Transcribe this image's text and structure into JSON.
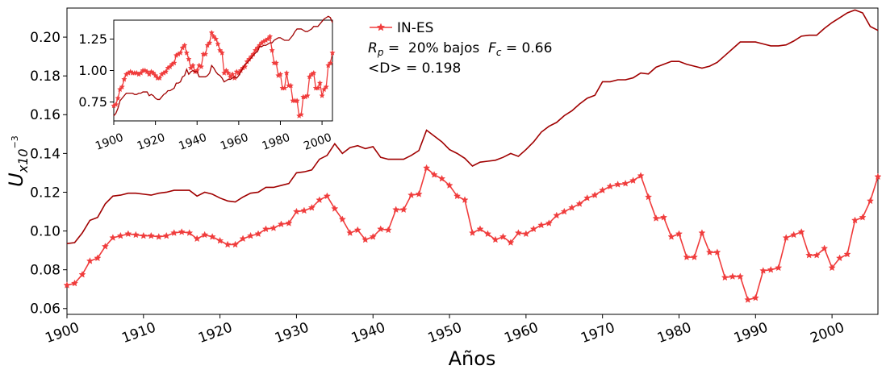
{
  "chart_data": [
    {
      "type": "line",
      "title": "",
      "xlabel": "Años",
      "ylabel": "U",
      "ylabel_sub": "x10",
      "ylabel_sup": "−3",
      "xlim": [
        1900,
        2006
      ],
      "ylim": [
        0.057,
        0.215
      ],
      "xticks": [
        1900,
        1910,
        1920,
        1930,
        1940,
        1950,
        1960,
        1970,
        1980,
        1990,
        2000
      ],
      "xtick_labels": [
        "1900",
        "1910",
        "1920",
        "1930",
        "1940",
        "1950",
        "1960",
        "1970",
        "1980",
        "1990",
        "2000"
      ],
      "yticks": [
        0.06,
        0.08,
        0.1,
        0.12,
        0.14,
        0.16,
        0.18,
        0.2
      ],
      "ytick_labels": [
        "0.06",
        "0.08",
        "0.10",
        "0.12",
        "0.14",
        "0.16",
        "0.18",
        "0.20"
      ],
      "legend": {
        "position": "top-center",
        "label": "IN-ES"
      },
      "annotations": {
        "rp_label": "R",
        "rp_sub": "p",
        "rp_text": " =  20% bajos  ",
        "fc_label": "F",
        "fc_sub": "c",
        "fc_text": " = 0.66",
        "d_text": "<D> = 0.198"
      },
      "colors": {
        "series_star": "#f03c3c",
        "series_dark": "#a00000"
      },
      "series": [
        {
          "name": "IN-ES",
          "marker": "star",
          "x": [
            1900,
            1901,
            1902,
            1903,
            1904,
            1905,
            1906,
            1907,
            1908,
            1909,
            1910,
            1911,
            1912,
            1913,
            1914,
            1915,
            1916,
            1917,
            1918,
            1919,
            1920,
            1921,
            1922,
            1923,
            1924,
            1925,
            1926,
            1927,
            1928,
            1929,
            1930,
            1931,
            1932,
            1933,
            1934,
            1935,
            1936,
            1937,
            1938,
            1939,
            1940,
            1941,
            1942,
            1943,
            1944,
            1945,
            1946,
            1947,
            1948,
            1949,
            1950,
            1951,
            1952,
            1953,
            1954,
            1955,
            1956,
            1957,
            1958,
            1959,
            1960,
            1961,
            1962,
            1963,
            1964,
            1965,
            1966,
            1967,
            1968,
            1969,
            1970,
            1971,
            1972,
            1973,
            1974,
            1975,
            1976,
            1977,
            1978,
            1979,
            1980,
            1981,
            1982,
            1983,
            1984,
            1985,
            1986,
            1987,
            1988,
            1989,
            1990,
            1991,
            1992,
            1993,
            1994,
            1995,
            1996,
            1997,
            1998,
            1999,
            2000,
            2001,
            2002,
            2003,
            2004,
            2005,
            2006
          ],
          "values": [
            0.072,
            0.073,
            0.0775,
            0.0845,
            0.086,
            0.092,
            0.0965,
            0.0975,
            0.0985,
            0.098,
            0.0975,
            0.0975,
            0.097,
            0.0975,
            0.099,
            0.0995,
            0.099,
            0.096,
            0.098,
            0.097,
            0.095,
            0.093,
            0.093,
            0.096,
            0.0975,
            0.0985,
            0.101,
            0.1015,
            0.1035,
            0.104,
            0.11,
            0.1105,
            0.112,
            0.116,
            0.118,
            0.1115,
            0.106,
            0.099,
            0.1005,
            0.0955,
            0.097,
            0.101,
            0.1005,
            0.111,
            0.111,
            0.1185,
            0.119,
            0.1325,
            0.129,
            0.127,
            0.1235,
            0.118,
            0.116,
            0.099,
            0.101,
            0.0985,
            0.0955,
            0.097,
            0.094,
            0.099,
            0.0985,
            0.101,
            0.103,
            0.104,
            0.108,
            0.11,
            0.112,
            0.114,
            0.117,
            0.1185,
            0.121,
            0.123,
            0.124,
            0.1245,
            0.126,
            0.1285,
            0.1175,
            0.1065,
            0.107,
            0.097,
            0.0985,
            0.0865,
            0.0865,
            0.099,
            0.089,
            0.089,
            0.076,
            0.0765,
            0.0765,
            0.0645,
            0.0655,
            0.0795,
            0.08,
            0.081,
            0.0965,
            0.098,
            0.0995,
            0.0875,
            0.0875,
            0.091,
            0.081,
            0.086,
            0.088,
            0.1055,
            0.107,
            0.1155,
            0.128
          ]
        },
        {
          "name": "",
          "marker": "none",
          "x": [
            1900,
            1901,
            1902,
            1903,
            1904,
            1905,
            1906,
            1907,
            1908,
            1909,
            1910,
            1911,
            1912,
            1913,
            1914,
            1915,
            1916,
            1917,
            1918,
            1919,
            1920,
            1921,
            1922,
            1923,
            1924,
            1925,
            1926,
            1927,
            1928,
            1929,
            1930,
            1931,
            1932,
            1933,
            1934,
            1935,
            1936,
            1937,
            1938,
            1939,
            1940,
            1941,
            1942,
            1943,
            1944,
            1945,
            1946,
            1947,
            1948,
            1949,
            1950,
            1951,
            1952,
            1953,
            1954,
            1955,
            1956,
            1957,
            1958,
            1959,
            1960,
            1961,
            1962,
            1963,
            1964,
            1965,
            1966,
            1967,
            1968,
            1969,
            1970,
            1971,
            1972,
            1973,
            1974,
            1975,
            1976,
            1977,
            1978,
            1979,
            1980,
            1981,
            1982,
            1983,
            1984,
            1985,
            1986,
            1987,
            1988,
            1989,
            1990,
            1991,
            1992,
            1993,
            1994,
            1995,
            1996,
            1997,
            1998,
            1999,
            2000,
            2001,
            2002,
            2003,
            2004,
            2005,
            2006
          ],
          "values": [
            0.0935,
            0.094,
            0.099,
            0.1055,
            0.107,
            0.114,
            0.118,
            0.1185,
            0.1195,
            0.1195,
            0.119,
            0.1185,
            0.1195,
            0.12,
            0.121,
            0.121,
            0.121,
            0.118,
            0.12,
            0.119,
            0.117,
            0.1155,
            0.115,
            0.1175,
            0.1195,
            0.12,
            0.1225,
            0.1225,
            0.1235,
            0.1245,
            0.13,
            0.1305,
            0.1315,
            0.137,
            0.139,
            0.145,
            0.14,
            0.143,
            0.144,
            0.1425,
            0.1435,
            0.138,
            0.137,
            0.137,
            0.137,
            0.139,
            0.1415,
            0.152,
            0.149,
            0.146,
            0.142,
            0.14,
            0.1375,
            0.1335,
            0.1355,
            0.136,
            0.1365,
            0.138,
            0.14,
            0.1385,
            0.142,
            0.146,
            0.151,
            0.154,
            0.156,
            0.1595,
            0.162,
            0.1655,
            0.1685,
            0.17,
            0.177,
            0.177,
            0.178,
            0.178,
            0.179,
            0.1815,
            0.181,
            0.1845,
            0.186,
            0.1875,
            0.1875,
            0.186,
            0.185,
            0.184,
            0.185,
            0.187,
            0.1905,
            0.194,
            0.1975,
            0.1975,
            0.1975,
            0.1965,
            0.1955,
            0.1955,
            0.196,
            0.198,
            0.2005,
            0.201,
            0.201,
            0.2045,
            0.2075,
            0.21,
            0.2125,
            0.214,
            0.2125,
            0.2055,
            0.2035
          ]
        }
      ]
    },
    {
      "type": "line",
      "title": "",
      "xlabel": "",
      "ylabel": "",
      "xlim": [
        1900,
        2005
      ],
      "ylim": [
        0.6,
        1.4
      ],
      "xticks": [
        1900,
        1920,
        1940,
        1960,
        1980,
        2000
      ],
      "xtick_labels": [
        "1900",
        "1920",
        "1940",
        "1960",
        "1980",
        "2000"
      ],
      "yticks": [
        0.75,
        1.0,
        1.25
      ],
      "ytick_labels": [
        "0.75",
        "1.00",
        "1.25"
      ],
      "series": [
        {
          "name": "IN-ES",
          "marker": "star",
          "x": [
            1900,
            1901,
            1902,
            1903,
            1904,
            1905,
            1906,
            1907,
            1908,
            1909,
            1910,
            1911,
            1912,
            1913,
            1914,
            1915,
            1916,
            1917,
            1918,
            1919,
            1920,
            1921,
            1922,
            1923,
            1924,
            1925,
            1926,
            1927,
            1928,
            1929,
            1930,
            1931,
            1932,
            1933,
            1934,
            1935,
            1936,
            1937,
            1938,
            1939,
            1940,
            1941,
            1942,
            1943,
            1944,
            1945,
            1946,
            1947,
            1948,
            1949,
            1950,
            1951,
            1952,
            1953,
            1954,
            1955,
            1956,
            1957,
            1958,
            1959,
            1960,
            1961,
            1962,
            1963,
            1964,
            1965,
            1966,
            1967,
            1968,
            1969,
            1970,
            1971,
            1972,
            1973,
            1974,
            1975,
            1976,
            1977,
            1978,
            1979,
            1980,
            1981,
            1982,
            1983,
            1984,
            1985,
            1986,
            1987,
            1988,
            1989,
            1990,
            1991,
            1992,
            1993,
            1994,
            1995,
            1996,
            1997,
            1998,
            1999,
            2000,
            2001,
            2002,
            2003,
            2004,
            2005
          ],
          "values": [
            0.72,
            0.73,
            0.78,
            0.85,
            0.87,
            0.93,
            0.97,
            0.98,
            0.99,
            0.98,
            0.98,
            0.98,
            0.97,
            0.98,
            1.0,
            1.0,
            0.99,
            0.97,
            0.99,
            0.98,
            0.96,
            0.94,
            0.94,
            0.97,
            0.98,
            0.99,
            1.02,
            1.03,
            1.05,
            1.06,
            1.12,
            1.13,
            1.14,
            1.18,
            1.2,
            1.14,
            1.09,
            1.02,
            1.04,
            0.99,
            1.0,
            1.04,
            1.03,
            1.13,
            1.13,
            1.2,
            1.22,
            1.3,
            1.27,
            1.25,
            1.21,
            1.16,
            1.14,
            0.98,
            1.0,
            0.98,
            0.95,
            0.97,
            0.94,
            0.99,
            0.98,
            1.0,
            1.02,
            1.03,
            1.07,
            1.09,
            1.11,
            1.13,
            1.16,
            1.18,
            1.2,
            1.22,
            1.23,
            1.24,
            1.25,
            1.27,
            1.16,
            1.06,
            1.06,
            0.96,
            0.97,
            0.86,
            0.86,
            0.98,
            0.88,
            0.88,
            0.76,
            0.76,
            0.76,
            0.64,
            0.65,
            0.79,
            0.79,
            0.8,
            0.95,
            0.97,
            0.98,
            0.86,
            0.86,
            0.9,
            0.8,
            0.85,
            0.87,
            1.04,
            1.06,
            1.14
          ]
        },
        {
          "name": "",
          "marker": "none",
          "x": [
            1900,
            1901,
            1902,
            1903,
            1904,
            1905,
            1906,
            1907,
            1908,
            1909,
            1910,
            1911,
            1912,
            1913,
            1914,
            1915,
            1916,
            1917,
            1918,
            1919,
            1920,
            1921,
            1922,
            1923,
            1924,
            1925,
            1926,
            1927,
            1928,
            1929,
            1930,
            1931,
            1932,
            1933,
            1934,
            1935,
            1936,
            1937,
            1938,
            1939,
            1940,
            1941,
            1942,
            1943,
            1944,
            1945,
            1946,
            1947,
            1948,
            1949,
            1950,
            1951,
            1952,
            1953,
            1954,
            1955,
            1956,
            1957,
            1958,
            1959,
            1960,
            1961,
            1962,
            1963,
            1964,
            1965,
            1966,
            1967,
            1968,
            1969,
            1970,
            1971,
            1972,
            1973,
            1974,
            1975,
            1976,
            1977,
            1978,
            1979,
            1980,
            1981,
            1982,
            1983,
            1984,
            1985,
            1986,
            1987,
            1988,
            1989,
            1990,
            1991,
            1992,
            1993,
            1994,
            1995,
            1996,
            1997,
            1998,
            1999,
            2000,
            2001,
            2002,
            2003,
            2004,
            2005
          ],
          "values": [
            0.64,
            0.66,
            0.7,
            0.76,
            0.78,
            0.8,
            0.82,
            0.82,
            0.82,
            0.82,
            0.81,
            0.81,
            0.82,
            0.82,
            0.83,
            0.83,
            0.83,
            0.8,
            0.81,
            0.8,
            0.78,
            0.77,
            0.77,
            0.79,
            0.81,
            0.82,
            0.84,
            0.84,
            0.85,
            0.86,
            0.9,
            0.9,
            0.91,
            0.95,
            0.96,
            1.01,
            0.97,
            0.99,
            1.0,
            0.99,
            0.99,
            0.95,
            0.95,
            0.95,
            0.95,
            0.96,
            0.98,
            1.04,
            1.02,
            0.99,
            0.97,
            0.96,
            0.94,
            0.91,
            0.92,
            0.93,
            0.93,
            0.94,
            0.95,
            0.94,
            0.96,
            0.99,
            1.02,
            1.05,
            1.06,
            1.08,
            1.1,
            1.12,
            1.14,
            1.15,
            1.19,
            1.19,
            1.2,
            1.2,
            1.21,
            1.22,
            1.22,
            1.24,
            1.25,
            1.26,
            1.26,
            1.25,
            1.24,
            1.24,
            1.24,
            1.26,
            1.28,
            1.31,
            1.33,
            1.33,
            1.33,
            1.32,
            1.31,
            1.31,
            1.32,
            1.33,
            1.35,
            1.35,
            1.35,
            1.37,
            1.39,
            1.41,
            1.42,
            1.43,
            1.42,
            1.38
          ]
        }
      ]
    }
  ]
}
